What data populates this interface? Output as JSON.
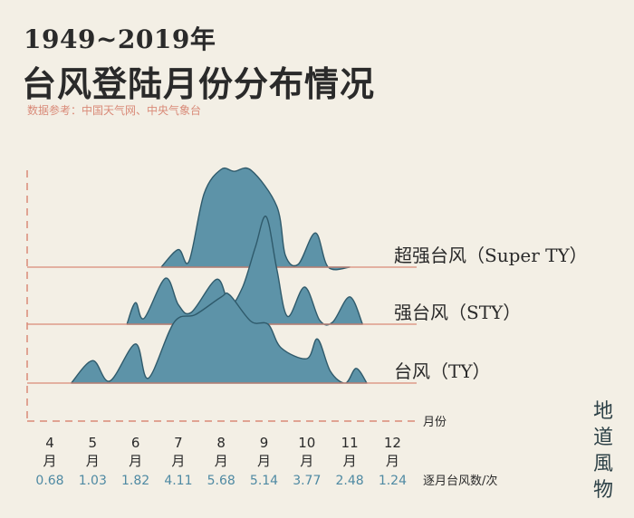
{
  "header": {
    "year_range": "1949~2019年",
    "title": "台风登陆月份分布情况",
    "source": "数据参考：中国天气网、中央气象台"
  },
  "watermark": [
    "地",
    "道",
    "風",
    "物"
  ],
  "chart_data": {
    "type": "ridgeline",
    "title": "台风登陆月份分布情况",
    "subtitle": "1949~2019年",
    "x_label": "月份",
    "value_label": "逐月台风数/次",
    "months": [
      4,
      5,
      6,
      7,
      8,
      9,
      10,
      11,
      12
    ],
    "month_suffix": "月",
    "monthly_values": [
      "0.68",
      "1.03",
      "1.82",
      "4.11",
      "5.68",
      "5.14",
      "3.77",
      "2.48",
      "1.24"
    ],
    "series": [
      {
        "name": "超强台风（Super TY）",
        "points": [
          [
            6.6,
            0
          ],
          [
            7,
            0.18
          ],
          [
            7.25,
            0.06
          ],
          [
            7.6,
            0.75
          ],
          [
            8.0,
            1.0
          ],
          [
            8.3,
            0.98
          ],
          [
            8.7,
            0.99
          ],
          [
            9.3,
            0.62
          ],
          [
            9.5,
            0.12
          ],
          [
            9.8,
            0.03
          ],
          [
            10.2,
            0.35
          ],
          [
            10.5,
            0
          ],
          [
            11.0,
            0
          ]
        ]
      },
      {
        "name": "强台风（STY）",
        "points": [
          [
            5.8,
            0
          ],
          [
            6.0,
            0.22
          ],
          [
            6.2,
            0.06
          ],
          [
            6.7,
            0.47
          ],
          [
            7.0,
            0.2
          ],
          [
            7.3,
            0.12
          ],
          [
            7.9,
            0.46
          ],
          [
            8.2,
            0.2
          ],
          [
            8.5,
            0.38
          ],
          [
            8.8,
            0.79
          ],
          [
            9.05,
            1.1
          ],
          [
            9.3,
            0.56
          ],
          [
            9.55,
            0.08
          ],
          [
            9.95,
            0.38
          ],
          [
            10.3,
            0.04
          ],
          [
            10.6,
            0.02
          ],
          [
            11.0,
            0.28
          ],
          [
            11.3,
            0
          ]
        ]
      },
      {
        "name": "台风（TY）",
        "points": [
          [
            4.5,
            0
          ],
          [
            5.0,
            0.23
          ],
          [
            5.4,
            0.02
          ],
          [
            6.0,
            0.4
          ],
          [
            6.3,
            0.05
          ],
          [
            6.9,
            0.62
          ],
          [
            7.4,
            0.7
          ],
          [
            8.0,
            0.88
          ],
          [
            8.2,
            0.9
          ],
          [
            8.7,
            0.63
          ],
          [
            9.1,
            0.6
          ],
          [
            9.4,
            0.36
          ],
          [
            10.0,
            0.25
          ],
          [
            10.25,
            0.45
          ],
          [
            10.55,
            0.12
          ],
          [
            10.9,
            0.0
          ],
          [
            11.15,
            0.15
          ],
          [
            11.4,
            0
          ]
        ]
      }
    ]
  }
}
